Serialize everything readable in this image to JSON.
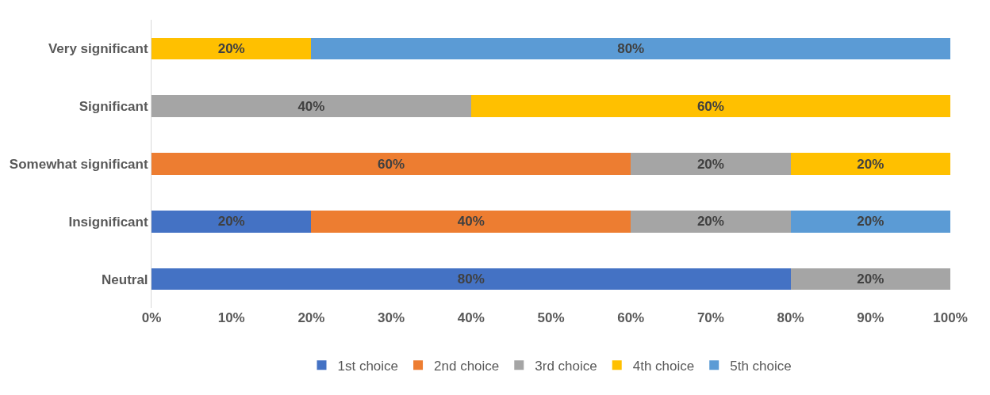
{
  "chart_data": {
    "type": "bar",
    "orientation": "horizontal",
    "stacked": true,
    "categories": [
      "Very significant",
      "Significant",
      "Somewhat significant",
      "Insignificant",
      "Neutral"
    ],
    "series": [
      {
        "name": "1st choice",
        "color": "#4472c4",
        "values": [
          null,
          null,
          null,
          20,
          80
        ],
        "value_labels": [
          null,
          null,
          null,
          "20%",
          "80%"
        ]
      },
      {
        "name": "2nd choice",
        "color": "#ed7d31",
        "values": [
          null,
          null,
          60,
          40,
          null
        ],
        "value_labels": [
          null,
          null,
          "60%",
          "40%",
          null
        ]
      },
      {
        "name": "3rd choice",
        "color": "#a5a5a5",
        "values": [
          null,
          40,
          20,
          20,
          20
        ],
        "value_labels": [
          null,
          "40%",
          "20%",
          "20%",
          "20%"
        ]
      },
      {
        "name": "4th choice",
        "color": "#ffc000",
        "values": [
          20,
          60,
          20,
          null,
          null
        ],
        "value_labels": [
          "20%",
          "60%",
          "20%",
          null,
          null
        ]
      },
      {
        "name": "5th choice",
        "color": "#5b9bd5",
        "values": [
          80,
          null,
          null,
          20,
          null
        ],
        "value_labels": [
          "80%",
          null,
          null,
          "20%",
          null
        ]
      }
    ],
    "xlim": [
      0,
      100
    ],
    "xticks": [
      {
        "value": 0,
        "label": "0%"
      },
      {
        "value": 10,
        "label": "10%"
      },
      {
        "value": 20,
        "label": "20%"
      },
      {
        "value": 30,
        "label": "30%"
      },
      {
        "value": 40,
        "label": "40%"
      },
      {
        "value": 50,
        "label": "50%"
      },
      {
        "value": 60,
        "label": "60%"
      },
      {
        "value": 70,
        "label": "70%"
      },
      {
        "value": 80,
        "label": "80%"
      },
      {
        "value": 90,
        "label": "90%"
      },
      {
        "value": 100,
        "label": "100%"
      }
    ],
    "legend": "bottom"
  }
}
